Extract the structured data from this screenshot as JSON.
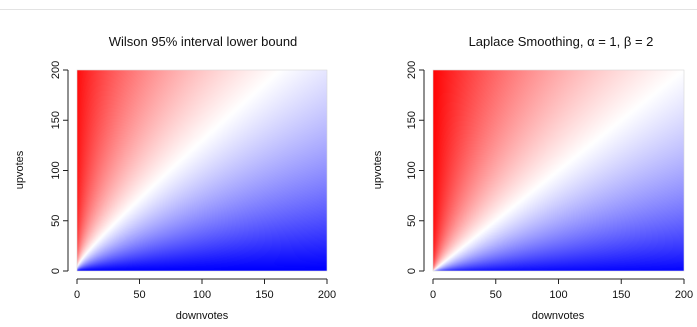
{
  "chart_data": [
    {
      "type": "heatmap",
      "title": "Wilson 95% interval lower bound",
      "xlabel": "downvotes",
      "ylabel": "upvotes",
      "xlim": [
        0,
        200
      ],
      "ylim": [
        0,
        200
      ],
      "xticks": [
        0,
        50,
        100,
        150,
        200
      ],
      "yticks": [
        0,
        50,
        100,
        150,
        200
      ],
      "color_scale": {
        "low": "#0000ff",
        "mid": "#ffffff",
        "high": "#ff0000"
      },
      "score": "wilson",
      "grid": false
    },
    {
      "type": "heatmap",
      "title": "Laplace Smoothing, α = 1,  β = 2",
      "xlabel": "downvotes",
      "ylabel": "upvotes",
      "xlim": [
        0,
        200
      ],
      "ylim": [
        0,
        200
      ],
      "xticks": [
        0,
        50,
        100,
        150,
        200
      ],
      "yticks": [
        0,
        50,
        100,
        150,
        200
      ],
      "color_scale": {
        "low": "#0000ff",
        "mid": "#ffffff",
        "high": "#ff0000"
      },
      "score": "laplace",
      "alpha": 1,
      "beta": 2,
      "grid": false
    }
  ]
}
